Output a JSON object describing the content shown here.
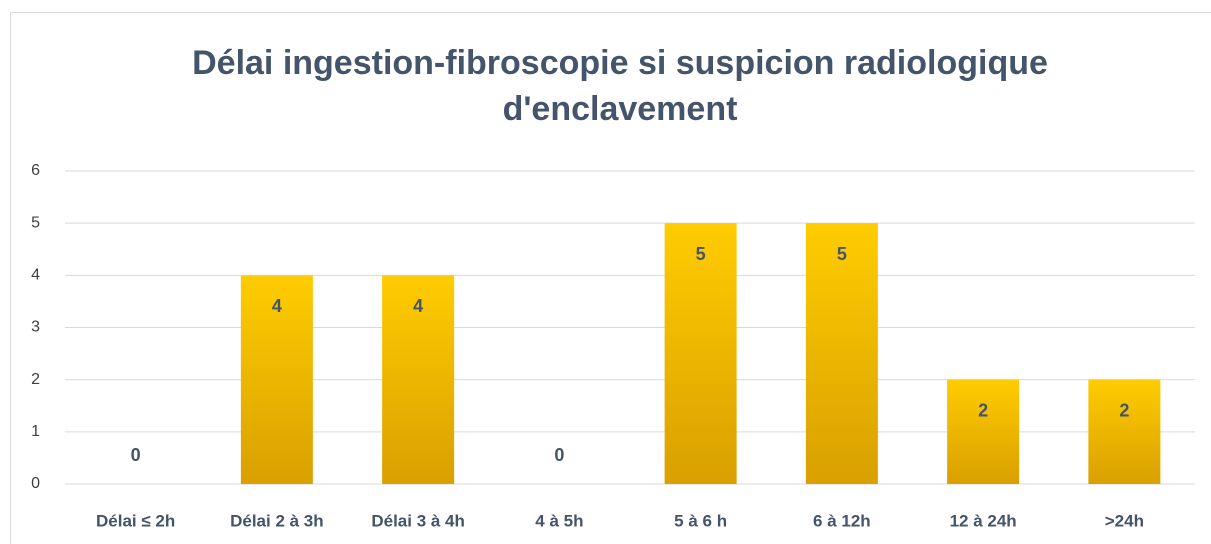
{
  "chart_data": {
    "type": "bar",
    "title": "Délai ingestion-fibroscopie si suspicion radiologique d'enclavement",
    "categories": [
      "Délai ≤ 2h",
      "Délai 2 à 3h",
      "Délai 3 à 4h",
      "4 à 5h",
      "5 à 6 h",
      "6 à 12h",
      "12 à 24h",
      ">24h"
    ],
    "values": [
      0,
      4,
      4,
      0,
      5,
      5,
      2,
      2
    ],
    "color": "#ffc000",
    "ylim": [
      0,
      6
    ],
    "yticks": [
      0,
      1,
      2,
      3,
      4,
      5,
      6
    ],
    "grid": true
  }
}
